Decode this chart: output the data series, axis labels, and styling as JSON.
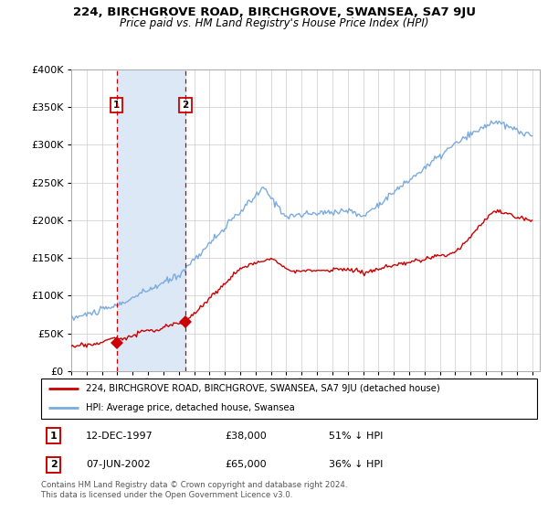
{
  "title": "224, BIRCHGROVE ROAD, BIRCHGROVE, SWANSEA, SA7 9JU",
  "subtitle": "Price paid vs. HM Land Registry's House Price Index (HPI)",
  "legend_line1": "224, BIRCHGROVE ROAD, BIRCHGROVE, SWANSEA, SA7 9JU (detached house)",
  "legend_line2": "HPI: Average price, detached house, Swansea",
  "sale1_date": "12-DEC-1997",
  "sale1_price": 38000,
  "sale1_label": "51% ↓ HPI",
  "sale1_year": 1997.95,
  "sale2_date": "07-JUN-2002",
  "sale2_price": 65000,
  "sale2_label": "36% ↓ HPI",
  "sale2_year": 2002.44,
  "footer": "Contains HM Land Registry data © Crown copyright and database right 2024.\nThis data is licensed under the Open Government Licence v3.0.",
  "red_color": "#cc0000",
  "blue_color": "#7aabe0",
  "shade_color": "#dce8f5",
  "ylim": [
    0,
    400000
  ],
  "xlim_start": 1995.0,
  "xlim_end": 2025.5,
  "yticks": [
    0,
    50000,
    100000,
    150000,
    200000,
    250000,
    300000,
    350000,
    400000
  ]
}
